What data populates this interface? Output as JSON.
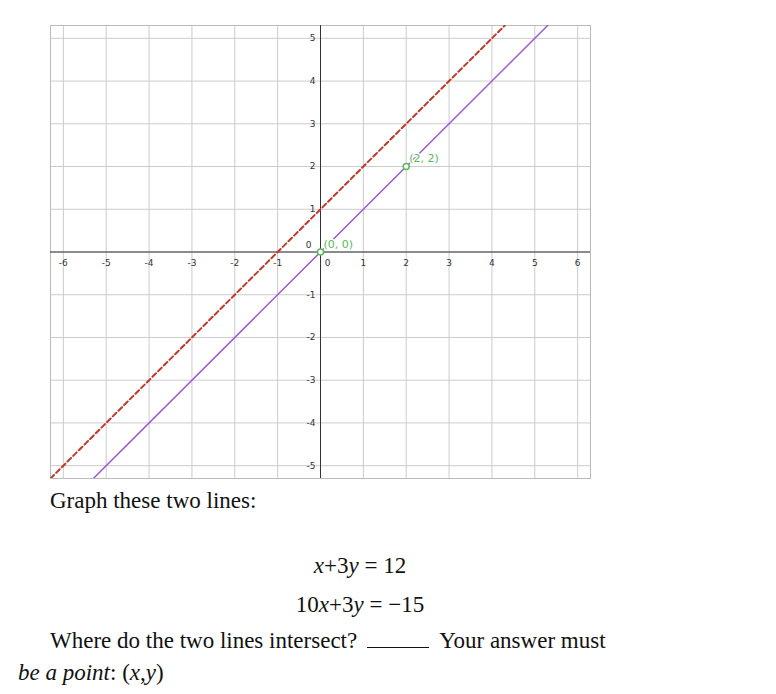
{
  "chart_data": {
    "type": "line",
    "xlim": [
      -6.3,
      6.3
    ],
    "ylim": [
      -5.3,
      5.3
    ],
    "xticks": [
      -6,
      -5,
      -4,
      -3,
      -2,
      -1,
      0,
      1,
      2,
      3,
      4,
      5,
      6
    ],
    "yticks": [
      -5,
      -4,
      -3,
      -2,
      -1,
      0,
      1,
      2,
      3,
      4,
      5
    ],
    "grid": true,
    "series": [
      {
        "color": "#c0392b",
        "line_style": "dashed",
        "x": [
          -6.3,
          4.3
        ],
        "values": [
          -5.3,
          5.3
        ]
      },
      {
        "color": "#9b59d6",
        "line_style": "solid",
        "x": [
          -5.3,
          5.3
        ],
        "values": [
          -5.3,
          5.3
        ]
      }
    ],
    "annotations": [
      {
        "x": 0,
        "y": 0,
        "label": "(0, 0)",
        "color": "#5cb85c"
      },
      {
        "x": 2,
        "y": 2,
        "label": "(2, 2)",
        "color": "#5cb85c"
      }
    ]
  },
  "text": {
    "prompt": "Graph these two lines:",
    "equations": [
      "x+3y = 12",
      "10x+3y = −15"
    ],
    "question": "Where do the two lines intersect?",
    "instruction": [
      "Your answer must",
      "be a point: (x,y)"
    ]
  }
}
